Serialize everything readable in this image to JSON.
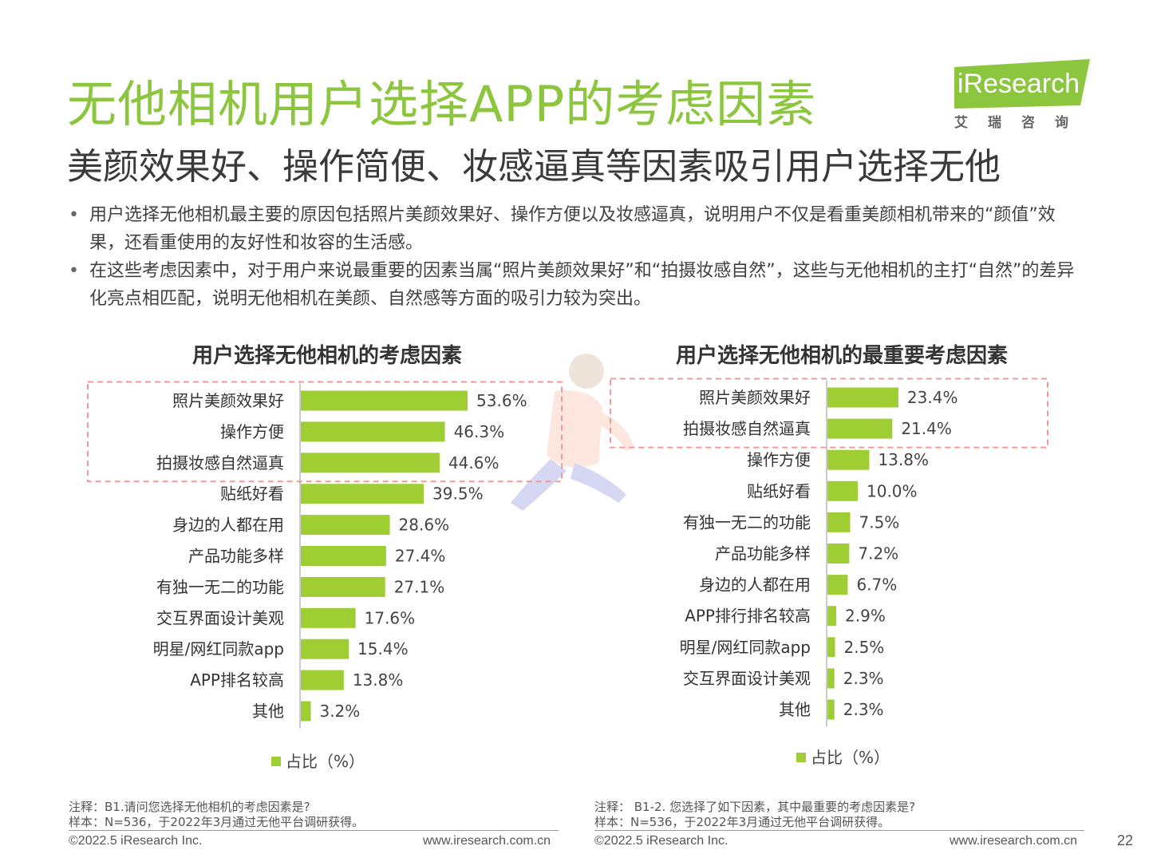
{
  "header": {
    "title": "无他相机用户选择APP的考虑因素",
    "subtitle": "美颜效果好、操作简便、妆感逼真等因素吸引用户选择无他",
    "logo_text": "iResearch",
    "logo_cn": "艾瑞咨询"
  },
  "bullets": [
    "用户选择无他相机最主要的原因包括照片美颜效果好、操作方便以及妆感逼真，说明用户不仅是看重美颜相机带来的“颜值”效果，还看重使用的友好性和妆容的生活感。",
    "在这些考虑因素中，对于用户来说最重要的因素当属“照片美颜效果好”和“拍摄妆感自然”，这些与无他相机的主打“自然”的差异化亮点相匹配，说明无他相机在美颜、自然感等方面的吸引力较为突出。"
  ],
  "colors": {
    "accent": "#8cc63e",
    "bar": "#9fcd34",
    "highlight_box": "#f09a9a"
  },
  "chart_data": [
    {
      "type": "bar",
      "orientation": "horizontal",
      "title": "用户选择无他相机的考虑因素",
      "categories": [
        "照片美颜效果好",
        "操作方便",
        "拍摄妆感自然逼真",
        "贴纸好看",
        "身边的人都在用",
        "产品功能多样",
        "有独一无二的功能",
        "交互界面设计美观",
        "明星/网红同款app",
        "APP排名较高",
        "其他"
      ],
      "series": [
        {
          "name": "占比（%）",
          "values": [
            53.6,
            46.3,
            44.6,
            39.5,
            28.6,
            27.4,
            27.1,
            17.6,
            15.4,
            13.8,
            3.2
          ]
        }
      ],
      "value_suffix": "%",
      "legend": "bottom",
      "highlighted": [
        "照片美颜效果好",
        "操作方便",
        "拍摄妆感自然逼真"
      ]
    },
    {
      "type": "bar",
      "orientation": "horizontal",
      "title": "用户选择无他相机的最重要考虑因素",
      "categories": [
        "照片美颜效果好",
        "拍摄妆感自然逼真",
        "操作方便",
        "贴纸好看",
        "有独一无二的功能",
        "产品功能多样",
        "身边的人都在用",
        "APP排行排名较高",
        "明星/网红同款app",
        "交互界面设计美观",
        "其他"
      ],
      "series": [
        {
          "name": "占比（%）",
          "values": [
            23.4,
            21.4,
            13.8,
            10.0,
            7.5,
            7.2,
            6.7,
            2.9,
            2.5,
            2.3,
            2.3
          ]
        }
      ],
      "value_suffix": "%",
      "legend": "bottom",
      "highlighted": [
        "照片美颜效果好",
        "拍摄妆感自然逼真"
      ]
    }
  ],
  "notes": {
    "left": [
      "注释：B1.请问您选择无他相机的考虑因素是?",
      "样本：N=536，于2022年3月通过无他平台调研获得。"
    ],
    "right": [
      "注释：  B1-2. 您选择了如下因素，其中最重要的考虑因素是?",
      "样本：N=536，于2022年3月通过无他平台调研获得。"
    ]
  },
  "footer": {
    "left_copyright": "©2022.5 iResearch Inc.",
    "left_url": "www.iresearch.com.cn",
    "right_copyright": "©2022.5 iResearch Inc.",
    "right_url": "www.iresearch.com.cn",
    "page_number": "22"
  }
}
